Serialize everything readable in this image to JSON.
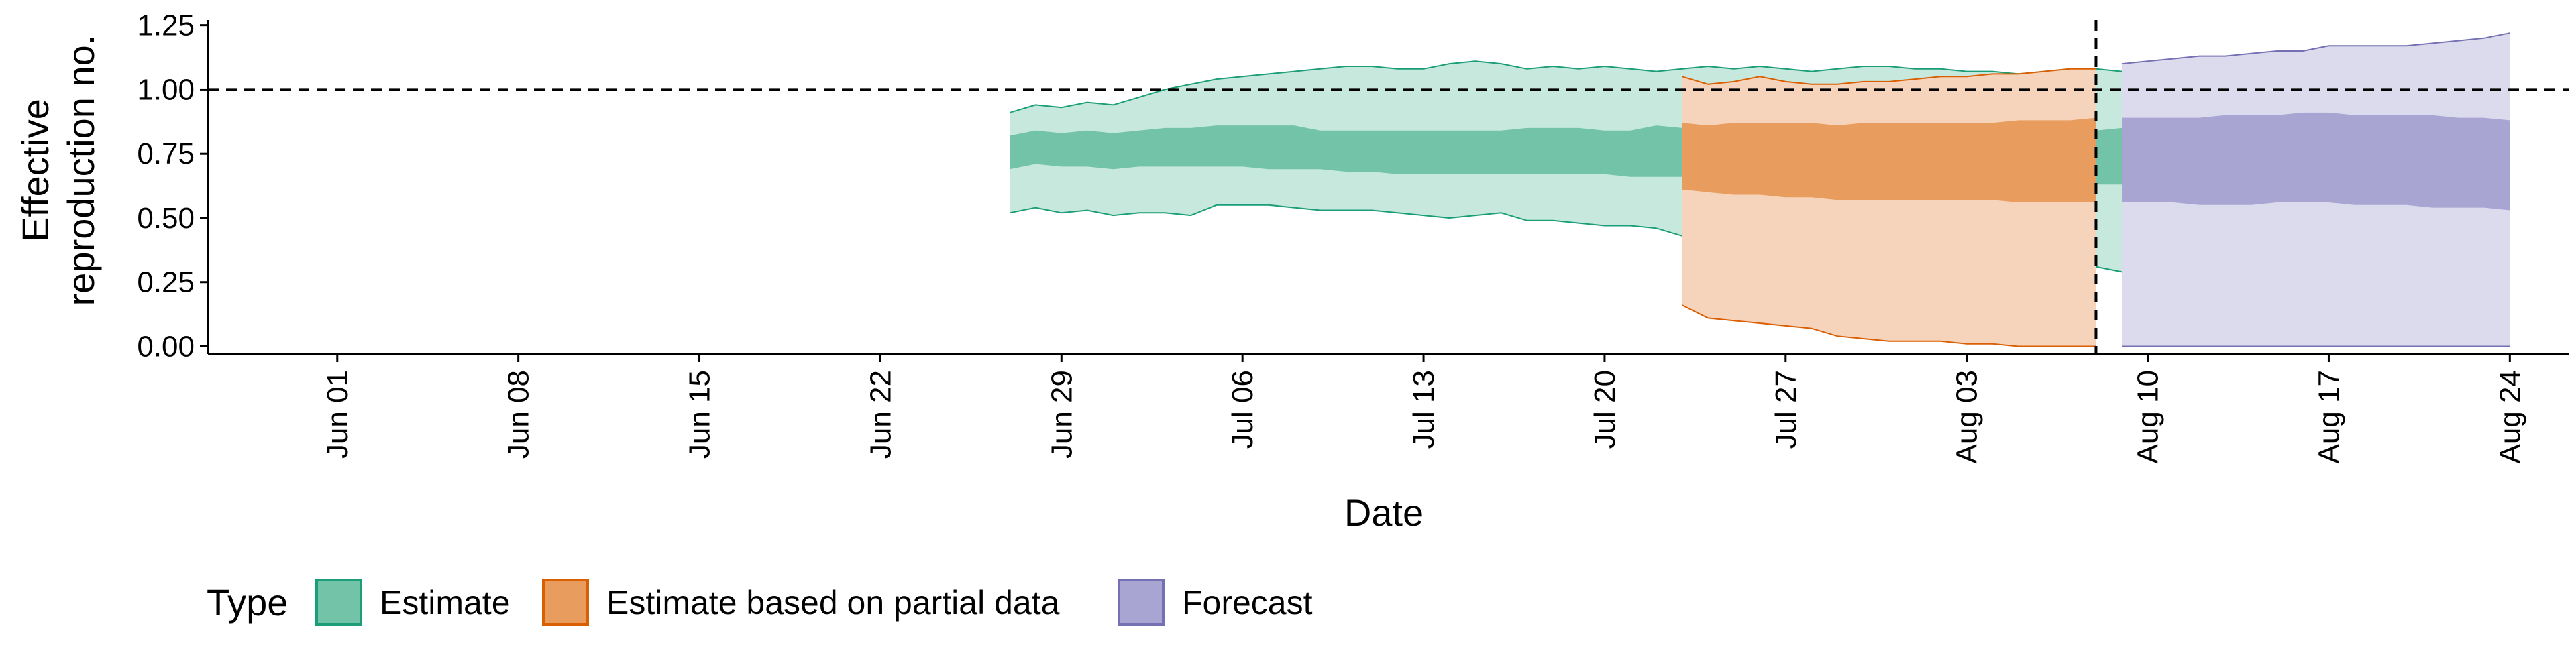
{
  "chart_data": {
    "type": "area",
    "title": "",
    "xlabel": "Date",
    "ylabel_lines": [
      "Effective",
      "reproduction no."
    ],
    "x_ticks": [
      "Jun 01",
      "Jun 08",
      "Jun 15",
      "Jun 22",
      "Jun 29",
      "Jul 06",
      "Jul 13",
      "Jul 20",
      "Jul 27",
      "Aug 03",
      "Aug 10",
      "Aug 17",
      "Aug 24"
    ],
    "x_tick_days": [
      3,
      10,
      17,
      24,
      31,
      38,
      45,
      52,
      59,
      66,
      73,
      80,
      87
    ],
    "x_range_days": [
      -2,
      89.3
    ],
    "y_ticks": [
      0.0,
      0.25,
      0.5,
      0.75,
      1.0,
      1.25
    ],
    "y_tick_labels": [
      "0.00",
      "0.25",
      "0.50",
      "0.75",
      "1.00",
      "1.25"
    ],
    "ylim": [
      -0.03,
      1.27
    ],
    "reference_line_y": 1.0,
    "forecast_cutoff": "Aug 08",
    "forecast_cutoff_day": 71,
    "grid": false,
    "legend": {
      "title": "Type",
      "position": "bottom-left",
      "entries": [
        {
          "label": "Estimate",
          "fill": "#73c3a9",
          "stroke": "#1b9e77"
        },
        {
          "label": "Estimate based on partial data",
          "fill": "#e89d5e",
          "stroke": "#d95f02"
        },
        {
          "label": "Forecast",
          "fill": "#a9a5d3",
          "stroke": "#7570b3"
        }
      ]
    },
    "series": [
      {
        "name": "Estimate",
        "color": "#1b9e77",
        "outer_fill": "#c6e8dd",
        "inner_fill": "#73c3a9",
        "start_day": 29,
        "upper90": [
          0.91,
          0.94,
          0.93,
          0.95,
          0.94,
          0.97,
          1.0,
          1.02,
          1.04,
          1.05,
          1.06,
          1.07,
          1.08,
          1.09,
          1.09,
          1.08,
          1.08,
          1.1,
          1.11,
          1.1,
          1.08,
          1.09,
          1.08,
          1.09,
          1.08,
          1.07,
          1.08,
          1.09,
          1.08,
          1.09,
          1.08,
          1.07,
          1.08,
          1.09,
          1.09,
          1.08,
          1.08,
          1.07,
          1.07,
          1.06,
          1.07,
          1.08,
          1.08,
          1.07,
          1.07,
          1.06,
          1.06,
          1.07,
          1.06,
          1.07,
          1.06,
          1.08,
          1.07,
          1.08
        ],
        "upper50": [
          0.82,
          0.84,
          0.83,
          0.84,
          0.83,
          0.84,
          0.85,
          0.85,
          0.86,
          0.86,
          0.86,
          0.86,
          0.84,
          0.84,
          0.84,
          0.84,
          0.84,
          0.84,
          0.84,
          0.84,
          0.85,
          0.85,
          0.85,
          0.84,
          0.84,
          0.86,
          0.85,
          0.85,
          0.85,
          0.85,
          0.85,
          0.84,
          0.85,
          0.85,
          0.85,
          0.85,
          0.84,
          0.85,
          0.85,
          0.84,
          0.84,
          0.84,
          0.84,
          0.85,
          0.86,
          0.85,
          0.85,
          0.84,
          0.85,
          0.85,
          0.85,
          0.84,
          0.86,
          0.86
        ],
        "lower50": [
          0.69,
          0.71,
          0.7,
          0.7,
          0.69,
          0.7,
          0.7,
          0.7,
          0.7,
          0.7,
          0.69,
          0.69,
          0.69,
          0.68,
          0.68,
          0.67,
          0.67,
          0.67,
          0.67,
          0.67,
          0.67,
          0.67,
          0.67,
          0.67,
          0.66,
          0.66,
          0.66,
          0.66,
          0.66,
          0.66,
          0.66,
          0.66,
          0.65,
          0.65,
          0.65,
          0.65,
          0.64,
          0.64,
          0.64,
          0.64,
          0.64,
          0.63,
          0.63,
          0.63,
          0.62,
          0.62,
          0.62,
          0.62,
          0.62,
          0.62,
          0.61,
          0.61,
          0.61,
          0.6
        ],
        "lower90": [
          0.52,
          0.54,
          0.52,
          0.53,
          0.51,
          0.52,
          0.52,
          0.51,
          0.55,
          0.55,
          0.55,
          0.54,
          0.53,
          0.53,
          0.53,
          0.52,
          0.51,
          0.5,
          0.51,
          0.52,
          0.49,
          0.49,
          0.48,
          0.47,
          0.47,
          0.46,
          0.43,
          0.42,
          0.42,
          0.41,
          0.41,
          0.4,
          0.39,
          0.38,
          0.38,
          0.37,
          0.36,
          0.35,
          0.34,
          0.34,
          0.32,
          0.32,
          0.31,
          0.29,
          0.29,
          0.28,
          0.27,
          0.27,
          0.26,
          0.26,
          0.25,
          0.24,
          0.23,
          0.21
        ]
      },
      {
        "name": "Estimate based on partial data",
        "color": "#d95f02",
        "outer_fill": "#f6d4bb",
        "inner_fill": "#e89d5e",
        "start_day": 55,
        "upper90": [
          1.05,
          1.02,
          1.03,
          1.05,
          1.03,
          1.02,
          1.02,
          1.03,
          1.03,
          1.04,
          1.05,
          1.05,
          1.06,
          1.06,
          1.07,
          1.08,
          1.08
        ],
        "upper50": [
          0.87,
          0.86,
          0.87,
          0.87,
          0.87,
          0.87,
          0.86,
          0.87,
          0.87,
          0.87,
          0.87,
          0.87,
          0.87,
          0.88,
          0.88,
          0.88,
          0.89
        ],
        "lower50": [
          0.61,
          0.6,
          0.59,
          0.59,
          0.58,
          0.58,
          0.57,
          0.57,
          0.57,
          0.57,
          0.57,
          0.57,
          0.57,
          0.56,
          0.56,
          0.56,
          0.56
        ],
        "lower90": [
          0.16,
          0.11,
          0.1,
          0.09,
          0.08,
          0.07,
          0.04,
          0.03,
          0.02,
          0.02,
          0.02,
          0.01,
          0.01,
          0.0,
          0.0,
          0.0,
          0.0
        ]
      },
      {
        "name": "Forecast",
        "color": "#7570b3",
        "outer_fill": "#dcdbed",
        "inner_fill": "#a9a5d3",
        "start_day": 72,
        "upper90": [
          1.1,
          1.11,
          1.12,
          1.13,
          1.13,
          1.14,
          1.15,
          1.15,
          1.17,
          1.17,
          1.17,
          1.17,
          1.18,
          1.19,
          1.2,
          1.22
        ],
        "upper50": [
          0.89,
          0.89,
          0.89,
          0.89,
          0.9,
          0.9,
          0.9,
          0.91,
          0.91,
          0.9,
          0.9,
          0.9,
          0.9,
          0.89,
          0.89,
          0.88
        ],
        "lower50": [
          0.56,
          0.56,
          0.56,
          0.55,
          0.55,
          0.55,
          0.56,
          0.56,
          0.56,
          0.55,
          0.55,
          0.55,
          0.54,
          0.54,
          0.54,
          0.53
        ],
        "lower90": [
          0.0,
          0.0,
          0.0,
          0.0,
          0.0,
          0.0,
          0.0,
          0.0,
          0.0,
          0.0,
          0.0,
          0.0,
          0.0,
          0.0,
          0.0,
          0.0
        ]
      }
    ]
  }
}
